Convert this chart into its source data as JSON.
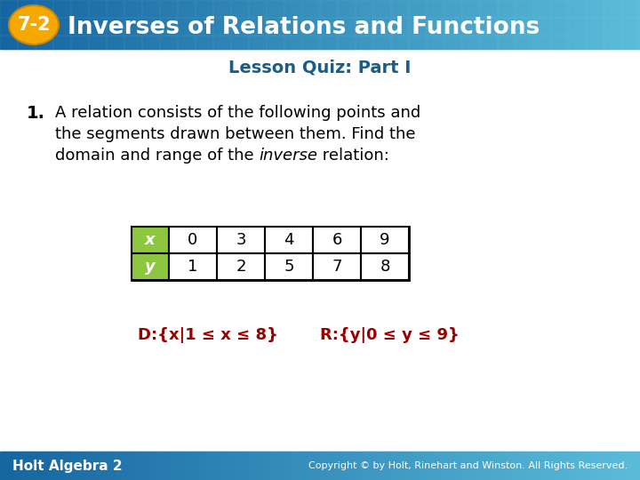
{
  "title_number": "7-2",
  "title_text": "Inverses of Relations and Functions",
  "subtitle": "Lesson Quiz: Part I",
  "header_bg_left": "#1565a0",
  "header_bg_right": "#5bbcd9",
  "badge_color": "#f5a800",
  "body_bg_color": "#ffffff",
  "subtitle_color": "#1a5c8a",
  "question_num": "1.",
  "question_line1": "A relation consists of the following points and",
  "question_line2": "the segments drawn between them. Find the",
  "question_line3_pre": "domain and range of the ",
  "question_line3_italic": "inverse",
  "question_line3_post": " relation:",
  "table_header_color": "#8dc63f",
  "table_x_label": "x",
  "table_y_label": "y",
  "table_x_values": [
    "0",
    "3",
    "4",
    "6",
    "9"
  ],
  "table_y_values": [
    "1",
    "2",
    "5",
    "7",
    "8"
  ],
  "answer_color": "#990000",
  "answer_d": "D:{x|1 ≤ x ≤ 8}",
  "answer_r": "R:{y|0 ≤ y ≤ 9}",
  "footer_text": "Holt Algebra 2",
  "footer_copyright": "Copyright © by Holt, Rinehart and Winston. All Rights Reserved.",
  "footer_bg_left": "#1565a0",
  "footer_bg_right": "#5bbcd9"
}
